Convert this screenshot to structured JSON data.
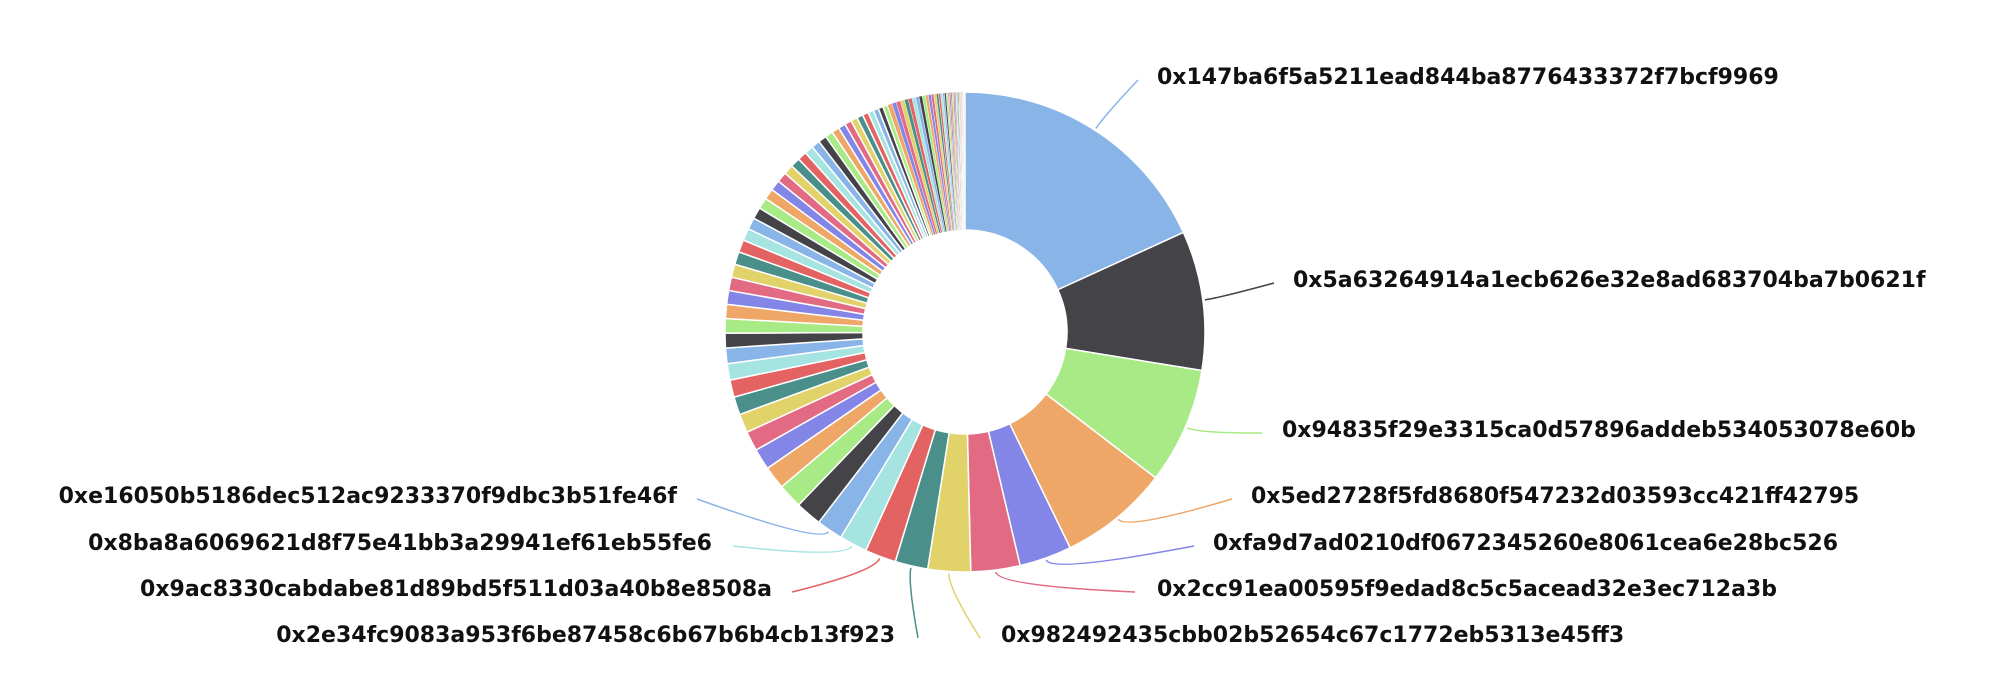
{
  "chart_data": {
    "type": "pie",
    "variant": "donut",
    "legend": "none",
    "title": "",
    "colors": [
      "#89b4e8",
      "#434348",
      "#a8eb86",
      "#eea767",
      "#8386e6",
      "#e26a83",
      "#e1d26a",
      "#4a8f8a",
      "#e36363",
      "#a6e4e1"
    ],
    "labeled_slices": [
      {
        "label": "0x147ba6f5a5211ead844ba8776433372f7bcf9969",
        "value": 16.5
      },
      {
        "label": "0x5a63264914a1ecb626e32e8ad683704ba7b0621f",
        "value": 8.5
      },
      {
        "label": "0x94835f29e3315ca0d57896addeb534053078e60b",
        "value": 7.1
      },
      {
        "label": "0x5ed2728f5fd8680f547232d03593cc421ff42795",
        "value": 6.7
      },
      {
        "label": "0xfa9d7ad0210df0672345260e8061cea6e28bc526",
        "value": 3.2
      },
      {
        "label": "0x2cc91ea00595f9edad8c5c5acead32e3ec712a3b",
        "value": 3.0
      },
      {
        "label": "0x982492435cbb02b52654c67c1772eb5313e45ff3",
        "value": 2.6
      },
      {
        "label": "0x2e34fc9083a953f6be87458c6b67b6b4cb13f923",
        "value": 2.0
      },
      {
        "label": "0x9ac8330cabdabe81d89bd5f511d03a40b8e8508a",
        "value": 1.9
      },
      {
        "label": "0x8ba8a6069621d8f75e41bb3a29941ef61eb55fe6",
        "value": 1.7
      },
      {
        "label": "0xe16050b5186dec512ac9233370f9dbc3b51fe46f",
        "value": 1.6
      }
    ],
    "unlabeled_slice_values": [
      1.6,
      1.5,
      1.4,
      1.3,
      1.2,
      1.15,
      1.1,
      1.05,
      1.0,
      0.95,
      0.9,
      0.88,
      0.86,
      0.84,
      0.82,
      0.8,
      0.78,
      0.76,
      0.74,
      0.72,
      0.7,
      0.68,
      0.66,
      0.64,
      0.62,
      0.6,
      0.58,
      0.56,
      0.54,
      0.52,
      0.5,
      0.48,
      0.46,
      0.44,
      0.42,
      0.4,
      0.38,
      0.36,
      0.34,
      0.32,
      0.3,
      0.29,
      0.28,
      0.27,
      0.26,
      0.25,
      0.24,
      0.23,
      0.22,
      0.21,
      0.2,
      0.19,
      0.18,
      0.17,
      0.16,
      0.15,
      0.14,
      0.13,
      0.12,
      0.11,
      0.1,
      0.1,
      0.09,
      0.09,
      0.08,
      0.08,
      0.07,
      0.07,
      0.06,
      0.06,
      0.05,
      0.05,
      0.05,
      0.04,
      0.04,
      0.04,
      0.03,
      0.03,
      0.03,
      0.02,
      0.02,
      0.02,
      0.02
    ]
  }
}
